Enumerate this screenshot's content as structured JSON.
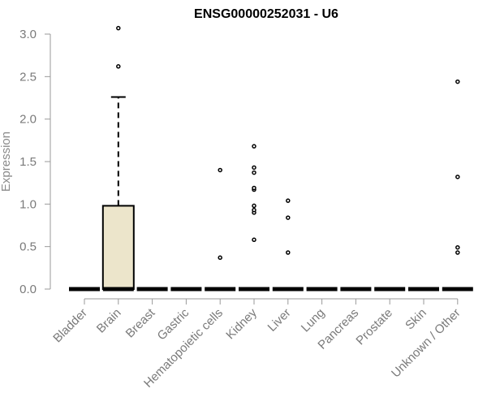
{
  "chart_data": {
    "type": "boxplot",
    "title": "ENSG00000252031 - U6",
    "xlabel": "",
    "ylabel": "Expression",
    "ylim": [
      0,
      3.1
    ],
    "yticks": [
      0.0,
      0.5,
      1.0,
      1.5,
      2.0,
      2.5,
      3.0
    ],
    "ytick_labels": [
      "0.0",
      "0.5",
      "1.0",
      "1.5",
      "2.0",
      "2.5",
      "3.0"
    ],
    "grid": false,
    "box_fill": "#ece5cb",
    "categories": [
      "Bladder",
      "Brain",
      "Breast",
      "Gastric",
      "Hematopoietic cells",
      "Kidney",
      "Liver",
      "Lung",
      "Pancreas",
      "Prostate",
      "Skin",
      "Unknown / Other"
    ],
    "boxes": [
      {
        "q1": 0,
        "median": 0,
        "q3": 0,
        "whisker_low": 0,
        "whisker_high": 0,
        "outliers": []
      },
      {
        "q1": 0,
        "median": 0,
        "q3": 0.98,
        "whisker_low": 0,
        "whisker_high": 2.26,
        "outliers": [
          2.62,
          3.07
        ]
      },
      {
        "q1": 0,
        "median": 0,
        "q3": 0,
        "whisker_low": 0,
        "whisker_high": 0,
        "outliers": []
      },
      {
        "q1": 0,
        "median": 0,
        "q3": 0,
        "whisker_low": 0,
        "whisker_high": 0,
        "outliers": []
      },
      {
        "q1": 0,
        "median": 0,
        "q3": 0,
        "whisker_low": 0,
        "whisker_high": 0,
        "outliers": [
          0.37,
          1.4
        ]
      },
      {
        "q1": 0,
        "median": 0,
        "q3": 0,
        "whisker_low": 0,
        "whisker_high": 0,
        "outliers": [
          0.58,
          0.9,
          0.93,
          0.98,
          1.17,
          1.19,
          1.37,
          1.43,
          1.68
        ]
      },
      {
        "q1": 0,
        "median": 0,
        "q3": 0,
        "whisker_low": 0,
        "whisker_high": 0,
        "outliers": [
          0.43,
          0.84,
          1.04
        ]
      },
      {
        "q1": 0,
        "median": 0,
        "q3": 0,
        "whisker_low": 0,
        "whisker_high": 0,
        "outliers": []
      },
      {
        "q1": 0,
        "median": 0,
        "q3": 0,
        "whisker_low": 0,
        "whisker_high": 0,
        "outliers": []
      },
      {
        "q1": 0,
        "median": 0,
        "q3": 0,
        "whisker_low": 0,
        "whisker_high": 0,
        "outliers": []
      },
      {
        "q1": 0,
        "median": 0,
        "q3": 0,
        "whisker_low": 0,
        "whisker_high": 0,
        "outliers": []
      },
      {
        "q1": 0,
        "median": 0,
        "q3": 0,
        "whisker_low": 0,
        "whisker_high": 0,
        "outliers": [
          0.43,
          0.49,
          1.32,
          2.44
        ]
      }
    ]
  }
}
